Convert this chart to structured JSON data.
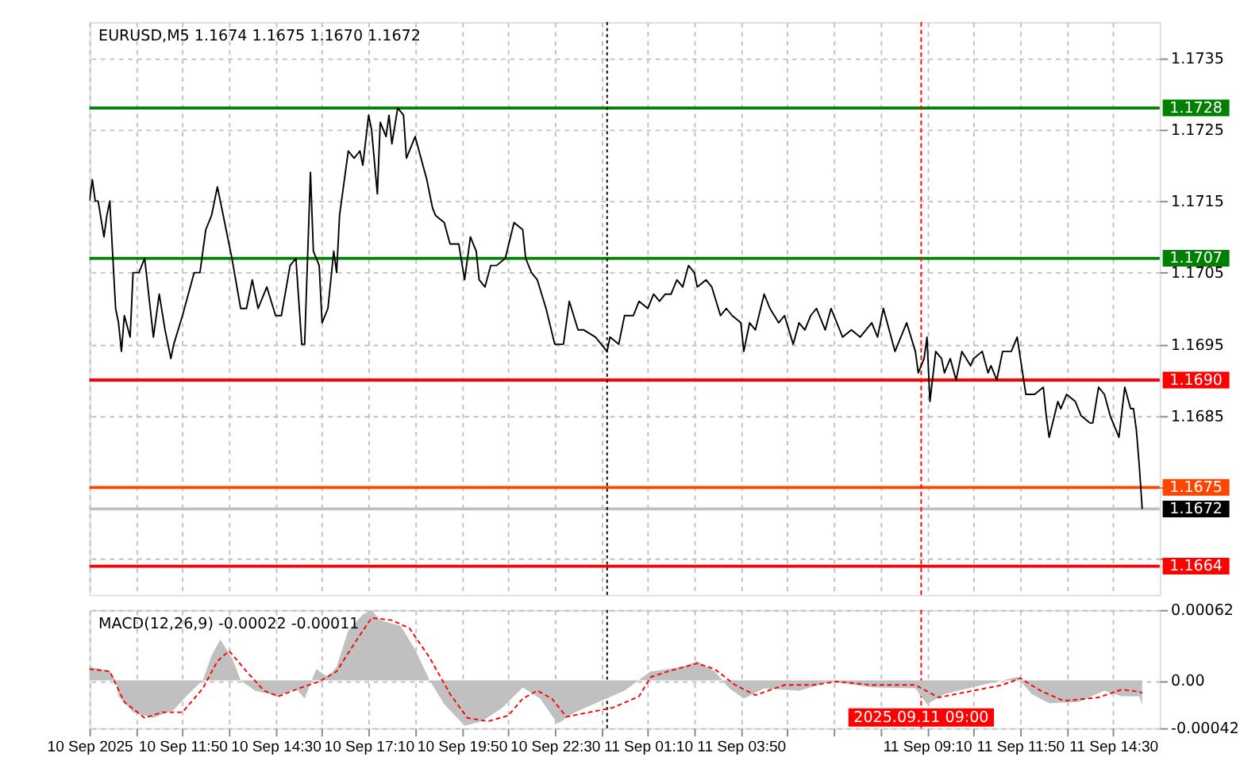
{
  "chart_data": [
    {
      "type": "line",
      "title": "EURUSD,M5  1.1674 1.1675 1.1670 1.1672",
      "x": [
        "2025-09-10T09:10",
        "2025-09-10T09:15",
        "2025-09-10T09:20",
        "2025-09-10T09:25",
        "2025-09-10T09:35",
        "2025-09-10T09:40",
        "2025-09-10T09:45",
        "2025-09-10T09:55",
        "2025-09-10T10:00",
        "2025-09-10T10:05",
        "2025-09-10T10:10",
        "2025-09-10T10:20",
        "2025-09-10T10:25",
        "2025-09-10T10:35",
        "2025-09-10T10:45",
        "2025-09-10T11:00",
        "2025-09-10T11:10",
        "2025-09-10T11:20",
        "2025-09-10T11:30",
        "2025-09-10T11:35",
        "2025-09-10T11:50",
        "2025-09-10T12:00",
        "2025-09-10T12:10",
        "2025-09-10T12:20",
        "2025-09-10T12:30",
        "2025-09-10T12:40",
        "2025-09-10T12:50",
        "2025-09-10T13:00",
        "2025-09-10T13:15",
        "2025-09-10T13:30",
        "2025-09-10T13:40",
        "2025-09-10T13:50",
        "2025-09-10T14:00",
        "2025-09-10T14:15",
        "2025-09-10T14:30",
        "2025-09-10T14:40",
        "2025-09-10T14:55",
        "2025-09-10T15:05",
        "2025-09-10T15:15",
        "2025-09-10T15:20",
        "2025-09-10T15:30",
        "2025-09-10T15:35",
        "2025-09-10T15:45",
        "2025-09-10T15:50",
        "2025-09-10T16:00",
        "2025-09-10T16:10",
        "2025-09-10T16:15",
        "2025-09-10T16:20",
        "2025-09-10T16:25",
        "2025-09-10T16:35",
        "2025-09-10T16:45",
        "2025-09-10T16:55",
        "2025-09-10T17:00",
        "2025-09-10T17:10",
        "2025-09-10T17:15",
        "2025-09-10T17:25",
        "2025-09-10T17:30",
        "2025-09-10T17:40",
        "2025-09-10T17:45",
        "2025-09-10T17:50",
        "2025-09-10T18:00",
        "2025-09-10T18:10",
        "2025-09-10T18:15",
        "2025-09-10T18:30",
        "2025-09-10T18:40",
        "2025-09-10T18:50",
        "2025-09-10T19:00",
        "2025-09-10T19:05",
        "2025-09-10T19:20",
        "2025-09-10T19:30",
        "2025-09-10T19:45",
        "2025-09-10T19:55",
        "2025-09-10T20:05",
        "2025-09-10T20:15",
        "2025-09-10T20:20",
        "2025-09-10T20:30",
        "2025-09-10T20:40",
        "2025-09-10T20:50",
        "2025-09-10T21:05",
        "2025-09-10T21:20",
        "2025-09-10T21:35",
        "2025-09-10T21:40",
        "2025-09-10T21:50",
        "2025-09-10T22:00",
        "2025-09-10T22:15",
        "2025-09-10T22:30",
        "2025-09-10T22:45",
        "2025-09-10T22:55",
        "2025-09-10T23:10",
        "2025-09-10T23:20",
        "2025-09-10T23:40",
        "2025-09-11T00:00",
        "2025-09-11T00:05",
        "2025-09-11T00:20",
        "2025-09-11T00:30",
        "2025-09-11T00:45",
        "2025-09-11T00:55",
        "2025-09-11T01:10",
        "2025-09-11T01:15",
        "2025-09-11T01:20",
        "2025-09-11T01:30",
        "2025-09-11T01:40",
        "2025-09-11T01:50",
        "2025-09-11T02:00",
        "2025-09-11T02:10",
        "2025-09-11T02:20",
        "2025-09-11T02:30",
        "2025-09-11T02:35",
        "2025-09-11T02:50",
        "2025-09-11T03:00",
        "2025-09-11T03:15",
        "2025-09-11T03:25",
        "2025-09-11T03:35",
        "2025-09-11T03:50",
        "2025-09-11T03:55",
        "2025-09-11T04:05",
        "2025-09-11T04:15",
        "2025-09-11T04:30",
        "2025-09-11T04:40",
        "2025-09-11T04:55",
        "2025-09-11T05:05",
        "2025-09-11T05:20",
        "2025-09-11T05:30",
        "2025-09-11T05:40",
        "2025-09-11T05:50",
        "2025-09-11T06:00",
        "2025-09-11T06:15",
        "2025-09-11T06:25",
        "2025-09-11T06:45",
        "2025-09-11T07:00",
        "2025-09-11T07:15",
        "2025-09-11T07:35",
        "2025-09-11T07:45",
        "2025-09-11T07:55",
        "2025-09-11T08:15",
        "2025-09-11T08:25",
        "2025-09-11T08:35",
        "2025-09-11T08:50",
        "2025-09-11T08:55",
        "2025-09-11T09:05",
        "2025-09-11T09:10",
        "2025-09-11T09:15",
        "2025-09-11T09:25",
        "2025-09-11T09:35",
        "2025-09-11T09:40",
        "2025-09-11T09:50",
        "2025-09-11T10:00",
        "2025-09-11T10:10",
        "2025-09-11T10:25",
        "2025-09-11T10:30",
        "2025-09-11T10:45",
        "2025-09-11T10:55",
        "2025-09-11T11:00",
        "2025-09-11T11:10",
        "2025-09-11T11:20",
        "2025-09-11T11:35",
        "2025-09-11T11:45",
        "2025-09-11T12:00",
        "2025-09-11T12:15",
        "2025-09-11T12:30",
        "2025-09-11T12:35",
        "2025-09-11T12:40",
        "2025-09-11T12:55",
        "2025-09-11T13:00",
        "2025-09-11T13:10",
        "2025-09-11T13:25",
        "2025-09-11T13:35",
        "2025-09-11T13:50",
        "2025-09-11T13:55",
        "2025-09-11T14:05",
        "2025-09-11T14:15",
        "2025-09-11T14:25",
        "2025-09-11T14:40",
        "2025-09-11T14:50",
        "2025-09-11T15:00",
        "2025-09-11T15:05",
        "2025-09-11T15:10",
        "2025-09-11T15:15",
        "2025-09-11T15:20"
      ],
      "series": [
        {
          "color": "#000000",
          "values": [
            1.1715,
            1.1718,
            1.1715,
            1.1715,
            1.171,
            1.1713,
            1.1715,
            1.17,
            1.1698,
            1.1694,
            1.1699,
            1.1696,
            1.1705,
            1.1705,
            1.1707,
            1.1696,
            1.1702,
            1.1697,
            1.1693,
            1.1695,
            1.1699,
            1.1702,
            1.1705,
            1.1705,
            1.1711,
            1.1713,
            1.1717,
            1.1713,
            1.1707,
            1.17,
            1.17,
            1.1704,
            1.17,
            1.1703,
            1.1699,
            1.1699,
            1.1706,
            1.1707,
            1.1695,
            1.1695,
            1.1719,
            1.1708,
            1.1706,
            1.1698,
            1.17,
            1.1708,
            1.1705,
            1.1713,
            1.1716,
            1.1722,
            1.1721,
            1.1722,
            1.172,
            1.1727,
            1.1725,
            1.1716,
            1.1726,
            1.1724,
            1.1727,
            1.1723,
            1.1728,
            1.1727,
            1.1721,
            1.1724,
            1.1721,
            1.1718,
            1.1714,
            1.1713,
            1.1712,
            1.1709,
            1.1709,
            1.1704,
            1.171,
            1.1708,
            1.1704,
            1.1703,
            1.1706,
            1.1706,
            1.1707,
            1.1712,
            1.1711,
            1.1707,
            1.1705,
            1.1704,
            1.17,
            1.1695,
            1.1695,
            1.1701,
            1.1697,
            1.1697,
            1.1696,
            1.1694,
            1.1696,
            1.1695,
            1.1699,
            1.1699,
            1.1701,
            1.17,
            1.1701,
            1.1702,
            1.1701,
            1.1702,
            1.1702,
            1.1704,
            1.1703,
            1.1706,
            1.1705,
            1.1703,
            1.1704,
            1.1703,
            1.1699,
            1.17,
            1.1699,
            1.1698,
            1.1694,
            1.1698,
            1.1697,
            1.1702,
            1.17,
            1.1698,
            1.1699,
            1.1695,
            1.1698,
            1.1697,
            1.1699,
            1.17,
            1.1697,
            1.17,
            1.1696,
            1.1697,
            1.1696,
            1.1698,
            1.1696,
            1.17,
            1.1694,
            1.1696,
            1.1698,
            1.1694,
            1.1691,
            1.1693,
            1.1696,
            1.1687,
            1.1694,
            1.1693,
            1.1691,
            1.1693,
            1.169,
            1.1694,
            1.1692,
            1.1693,
            1.1694,
            1.1691,
            1.1692,
            1.169,
            1.1694,
            1.1694,
            1.1696,
            1.1688,
            1.1688,
            1.1689,
            1.1685,
            1.1682,
            1.1687,
            1.1686,
            1.1688,
            1.1687,
            1.1685,
            1.1684,
            1.1684,
            1.1689,
            1.1688,
            1.1685,
            1.1682,
            1.1689,
            1.1686,
            1.1686,
            1.1683,
            1.1678,
            1.1672
          ]
        }
      ],
      "xlim": [
        "2025-09-10T09:10",
        "2025-09-11T15:50"
      ],
      "xticks": [
        {
          "value": "2025-09-10T09:10",
          "label": null
        },
        {
          "value": "2025-09-10T10:30",
          "label": null
        },
        {
          "value": "2025-09-10T11:50",
          "label": null
        },
        {
          "value": "2025-09-10T13:10",
          "label": null
        },
        {
          "value": "2025-09-10T14:30",
          "label": null
        },
        {
          "value": "2025-09-10T15:50",
          "label": null
        },
        {
          "value": "2025-09-10T17:10",
          "label": null
        },
        {
          "value": "2025-09-10T18:30",
          "label": null
        },
        {
          "value": "2025-09-10T19:50",
          "label": null
        },
        {
          "value": "2025-09-10T21:10",
          "label": null
        },
        {
          "value": "2025-09-10T22:30",
          "label": null
        },
        {
          "value": "2025-09-10T23:50",
          "label": null
        },
        {
          "value": "2025-09-11T01:10",
          "label": null
        },
        {
          "value": "2025-09-11T02:30",
          "label": null
        },
        {
          "value": "2025-09-11T03:50",
          "label": null
        },
        {
          "value": "2025-09-11T05:10",
          "label": null
        },
        {
          "value": "2025-09-11T06:30",
          "label": null
        },
        {
          "value": "2025-09-11T07:50",
          "label": null
        },
        {
          "value": "2025-09-11T09:10",
          "label": null
        },
        {
          "value": "2025-09-11T10:30",
          "label": null
        },
        {
          "value": "2025-09-11T11:50",
          "label": null
        },
        {
          "value": "2025-09-11T13:10",
          "label": null
        },
        {
          "value": "2025-09-11T14:30",
          "label": null
        }
      ],
      "ylim": [
        1.166,
        1.174
      ],
      "yticks": [
        {
          "value": 1.1665,
          "label": null
        },
        {
          "value": 1.1675,
          "label": null
        },
        1.1685,
        1.1695,
        1.1705,
        1.1715,
        1.1725,
        1.1735
      ],
      "ref_lines": [
        {
          "axis": "y",
          "value": 1.1728,
          "label": "1.1728",
          "color": "#008000"
        },
        {
          "axis": "y",
          "value": 1.1707,
          "label": "1.1707",
          "color": "#008000"
        },
        {
          "axis": "y",
          "value": 1.169,
          "label": "1.1690",
          "color": "#ff0000"
        },
        {
          "axis": "y",
          "value": 1.1675,
          "label": "1.1675",
          "color": "#ff4500"
        },
        {
          "axis": "y",
          "value": 1.1672,
          "label": "1.1672",
          "color": "#c0c0c0"
        },
        {
          "axis": "y",
          "value": 1.1664,
          "label": "1.1664",
          "color": "#ff0000"
        },
        {
          "axis": "x",
          "value": "2025-09-11T00:00",
          "color": "#000000",
          "line_style": "dotted"
        },
        {
          "axis": "x",
          "value": "2025-09-11T09:00",
          "color": "#ff0000",
          "line_style": "dashed"
        }
      ],
      "grid": true,
      "tick_labels": "y"
    },
    {
      "type": "line",
      "title": "MACD(12,26,9) -0.00022 -0.00011",
      "series": [
        {
          "type": "area",
          "color": "#c0c0c0",
          "x": [
            "2025-09-10T09:10",
            "2025-09-10T09:45",
            "2025-09-10T09:55",
            "2025-09-10T10:00",
            "2025-09-10T10:25",
            "2025-09-10T11:00",
            "2025-09-10T11:35",
            "2025-09-10T12:00",
            "2025-09-10T12:25",
            "2025-09-10T12:40",
            "2025-09-10T12:55",
            "2025-09-10T13:15",
            "2025-09-10T13:30",
            "2025-09-10T13:55",
            "2025-09-10T14:35",
            "2025-09-10T15:05",
            "2025-09-10T15:20",
            "2025-09-10T15:40",
            "2025-09-10T16:00",
            "2025-09-10T16:15",
            "2025-09-10T16:35",
            "2025-09-10T17:00",
            "2025-09-10T17:15",
            "2025-09-10T17:30",
            "2025-09-10T18:05",
            "2025-09-10T18:30",
            "2025-09-10T18:55",
            "2025-09-10T19:20",
            "2025-09-10T19:55",
            "2025-09-10T20:25",
            "2025-09-10T21:00",
            "2025-09-10T21:35",
            "2025-09-10T22:05",
            "2025-09-10T22:35",
            "2025-09-10T23:05",
            "2025-09-10T23:45",
            "2025-09-11T00:30",
            "2025-09-11T01:15",
            "2025-09-11T01:20",
            "2025-09-11T02:10",
            "2025-09-11T02:35",
            "2025-09-11T03:05",
            "2025-09-11T03:30",
            "2025-09-11T03:55",
            "2025-09-11T04:30",
            "2025-09-11T05:30",
            "2025-09-11T06:25",
            "2025-09-11T07:35",
            "2025-09-11T08:50",
            "2025-09-11T09:10",
            "2025-09-11T09:40",
            "2025-09-11T10:45",
            "2025-09-11T11:45",
            "2025-09-11T12:10",
            "2025-09-11T12:40",
            "2025-09-11T13:30",
            "2025-09-11T14:15",
            "2025-09-11T14:45",
            "2025-09-11T15:15",
            "2025-09-11T15:20"
          ],
          "values": [
            0.00012,
            8e-05,
            0,
            -0.00014,
            -0.00028,
            -0.00033,
            -0.00026,
            -0.00012,
            0,
            0.00022,
            0.00036,
            0.0002,
            0,
            -9e-05,
            -0.00014,
            -7e-05,
            -0.00016,
            0.0001,
            3e-05,
            0.00012,
            0.00044,
            0.00058,
            0.00062,
            0.00053,
            0.00048,
            0.00027,
            0,
            -0.00021,
            -0.0004,
            -0.00036,
            -0.00024,
            -6e-05,
            -0.00016,
            -0.00038,
            -0.00028,
            -0.00019,
            -9e-05,
            8e-05,
            8e-05,
            0.00012,
            0.00017,
            8e-05,
            -7e-05,
            -0.00016,
            -7e-05,
            -9e-05,
            -1e-05,
            -6e-05,
            -7e-05,
            -0.00021,
            -0.00012,
            -4e-05,
            3e-05,
            -0.00012,
            -0.0002,
            -0.00019,
            -9e-05,
            -0.00014,
            -0.00014,
            -0.00022
          ]
        },
        {
          "type": "line",
          "color": "#ff0000",
          "line_style": "dashed",
          "x": [
            "2025-09-10T09:10",
            "2025-09-10T09:45",
            "2025-09-10T10:10",
            "2025-09-10T10:45",
            "2025-09-10T11:15",
            "2025-09-10T11:50",
            "2025-09-10T12:25",
            "2025-09-10T12:50",
            "2025-09-10T13:10",
            "2025-09-10T13:40",
            "2025-09-10T14:10",
            "2025-09-10T14:35",
            "2025-09-10T15:10",
            "2025-09-10T15:45",
            "2025-09-10T16:15",
            "2025-09-10T16:50",
            "2025-09-10T17:15",
            "2025-09-10T17:50",
            "2025-09-10T18:20",
            "2025-09-10T18:55",
            "2025-09-10T19:30",
            "2025-09-10T20:00",
            "2025-09-10T20:35",
            "2025-09-10T21:10",
            "2025-09-10T21:35",
            "2025-09-10T22:00",
            "2025-09-10T22:25",
            "2025-09-10T22:50",
            "2025-09-10T23:30",
            "2025-09-11T00:10",
            "2025-09-11T00:55",
            "2025-09-11T01:15",
            "2025-09-11T01:45",
            "2025-09-11T02:35",
            "2025-09-11T03:05",
            "2025-09-11T03:40",
            "2025-09-11T04:15",
            "2025-09-11T05:05",
            "2025-09-11T05:55",
            "2025-09-11T06:35",
            "2025-09-11T07:35",
            "2025-09-11T08:50",
            "2025-09-11T09:30",
            "2025-09-11T10:30",
            "2025-09-11T11:20",
            "2025-09-11T11:50",
            "2025-09-11T12:25",
            "2025-09-11T13:05",
            "2025-09-11T14:05",
            "2025-09-11T14:45",
            "2025-09-11T15:15",
            "2025-09-11T15:20"
          ],
          "values": [
            0.0001,
            8e-05,
            -0.00019,
            -0.00033,
            -0.00028,
            -0.00028,
            -7e-05,
            0.00017,
            0.00026,
            8e-05,
            -9e-05,
            -0.00014,
            -7e-05,
            -1e-05,
            8e-05,
            0.00036,
            0.00055,
            0.00053,
            0.00046,
            0.0002,
            -0.00012,
            -0.00033,
            -0.00036,
            -0.00031,
            -0.00016,
            -9e-05,
            -0.00016,
            -0.00032,
            -0.00028,
            -0.00024,
            -0.00014,
            3e-05,
            8e-05,
            0.00015,
            0.0001,
            -4e-05,
            -0.00013,
            -4e-05,
            -4e-05,
            -1e-05,
            -4e-05,
            -4e-05,
            -0.00015,
            -9e-05,
            -4e-05,
            2e-05,
            -9e-05,
            -0.00018,
            -0.00015,
            -8e-05,
            -0.0001,
            -0.00011
          ]
        }
      ],
      "xlim": [
        "2025-09-10T09:10",
        "2025-09-11T15:50"
      ],
      "xticks": [
        {
          "value": "2025-09-10T09:10",
          "label": "10 Sep 2025"
        },
        {
          "value": "2025-09-10T10:30",
          "label": null
        },
        {
          "value": "2025-09-10T11:50",
          "label": "10 Sep 11:50"
        },
        {
          "value": "2025-09-10T13:10",
          "label": null
        },
        {
          "value": "2025-09-10T14:30",
          "label": "10 Sep 14:30"
        },
        {
          "value": "2025-09-10T15:50",
          "label": null
        },
        {
          "value": "2025-09-10T17:10",
          "label": "10 Sep 17:10"
        },
        {
          "value": "2025-09-10T18:30",
          "label": null
        },
        {
          "value": "2025-09-10T19:50",
          "label": "10 Sep 19:50"
        },
        {
          "value": "2025-09-10T21:10",
          "label": null
        },
        {
          "value": "2025-09-10T22:30",
          "label": "10 Sep 22:30"
        },
        {
          "value": "2025-09-10T23:50",
          "label": null
        },
        {
          "value": "2025-09-11T01:10",
          "label": "11 Sep 01:10"
        },
        {
          "value": "2025-09-11T02:30",
          "label": null
        },
        {
          "value": "2025-09-11T03:50",
          "label": "11 Sep 03:50"
        },
        {
          "value": "2025-09-11T05:10",
          "label": null
        },
        {
          "value": "2025-09-11T06:30",
          "label": null
        },
        {
          "value": "2025-09-11T07:50",
          "label": null
        },
        {
          "value": "2025-09-11T09:10",
          "label": "11 Sep 09:10"
        },
        {
          "value": "2025-09-11T10:30",
          "label": null
        },
        {
          "value": "2025-09-11T11:50",
          "label": "11 Sep 11:50"
        },
        {
          "value": "2025-09-11T13:10",
          "label": null
        },
        {
          "value": "2025-09-11T14:30",
          "label": "11 Sep 14:30"
        }
      ],
      "ylim": [
        -0.00042,
        0.00062
      ],
      "yticks": [
        -0.00042,
        {
          "value": 0,
          "label": "0.00"
        },
        0.00062
      ],
      "ref_lines": [
        {
          "axis": "x",
          "value": "2025-09-11T00:00",
          "color": "#000000",
          "line_style": "dotted"
        },
        {
          "axis": "x",
          "value": "2025-09-11T09:00",
          "label": "2025.09.11 09:00",
          "color": "#ff0000",
          "line_style": "dashed"
        }
      ],
      "grid": true
    }
  ]
}
